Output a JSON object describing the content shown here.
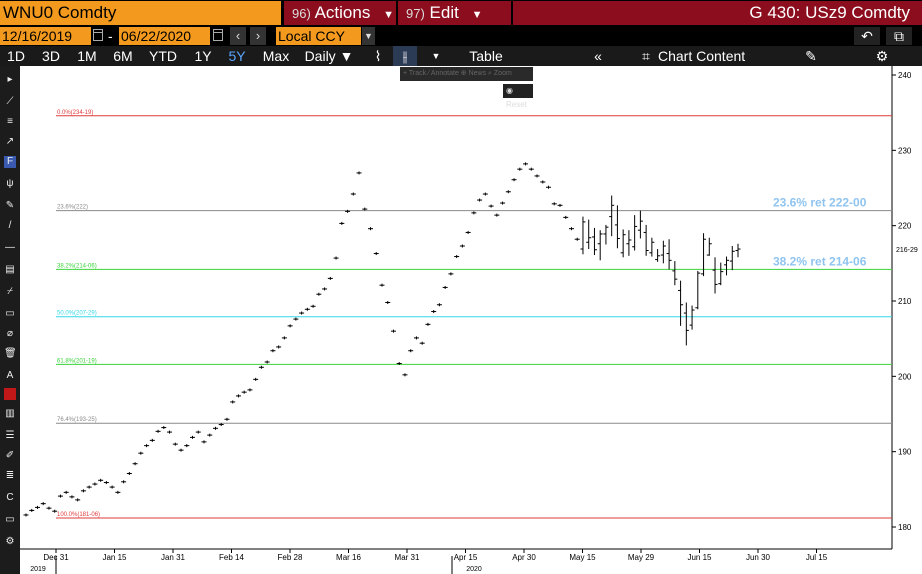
{
  "header": {
    "ticker": "WNU0 Comdty",
    "actions": {
      "num": "96)",
      "label": "Actions"
    },
    "edit": {
      "num": "97)",
      "label": "Edit"
    },
    "title": "G 430: USz9 Comdty"
  },
  "controls": {
    "start_date": "12/16/2019",
    "end_date": "06/22/2020",
    "dash": "-",
    "currency": "Local CCY",
    "prev_symbol": "‹",
    "next_symbol": "›",
    "undo_symbol": "↶",
    "copy_symbol": "⧉"
  },
  "toolbar": {
    "periods": [
      "1D",
      "3D",
      "1M",
      "6M",
      "YTD",
      "1Y",
      "5Y",
      "Max"
    ],
    "active_period": "5Y",
    "frequency": "Daily ▼",
    "table_label": "Table",
    "collapse_symbol": "«",
    "chart_content_label": "Chart Content",
    "edit_symbol": "✎",
    "settings_symbol": "⚙"
  },
  "float_tools": {
    "label": "+ Track  ⁄ Annotate  ⊕ News  ⌕ Zoom"
  },
  "reset_label": "Reset",
  "colors": {
    "red_line": "#e03a3a",
    "green_line": "#3ad33a",
    "cyan_line": "#36d7e8",
    "gray_line": "#8a8a8a",
    "label_blue": "#8fc4f0",
    "accent_orange": "#f39a1e",
    "bar_color": "#000000"
  },
  "chart_data": {
    "type": "bar",
    "subtype": "ohlc",
    "y_axis": {
      "ticks": [
        "240",
        "230",
        "220",
        "210",
        "200",
        "190",
        "180"
      ],
      "min": 179,
      "max": 240,
      "position": "right",
      "last_price_label": "216-29"
    },
    "x_axis": {
      "ticks": [
        "Dec 31",
        "Jan 15",
        "Jan 31",
        "Feb 14",
        "Feb 28",
        "Mar 16",
        "Mar 31",
        "Apr 15",
        "Apr 30",
        "May 15",
        "May 29",
        "Jun 15",
        "Jun 30",
        "Jul 15"
      ],
      "years": [
        {
          "label": "2019"
        },
        {
          "label": "2020"
        }
      ]
    },
    "fib_levels": [
      {
        "label": "0.0%(234-19)",
        "value": 234.59,
        "color": "red",
        "right_label": ""
      },
      {
        "label": "23.6%(222)",
        "value": 222.0,
        "color": "gray",
        "right_label": "23.6% ret 222-00"
      },
      {
        "label": "38.2%(214-06)",
        "value": 214.19,
        "color": "green",
        "right_label": "38.2% ret 214-06"
      },
      {
        "label": "50.0%(207-29)",
        "value": 207.91,
        "color": "cyan",
        "right_label": ""
      },
      {
        "label": "61.8%(201-19)",
        "value": 201.59,
        "color": "green",
        "right_label": ""
      },
      {
        "label": "76.4%(193-25)",
        "value": 193.78,
        "color": "gray",
        "right_label": ""
      },
      {
        "label": "100.0%(181-06)",
        "value": 181.19,
        "color": "red",
        "right_label": ""
      }
    ],
    "grid": false,
    "series_ohlc": [
      [
        181.6,
        181.8,
        181.4,
        181.6
      ],
      [
        182.2,
        182.4,
        182.0,
        182.2
      ],
      [
        182.6,
        182.8,
        182.4,
        182.6
      ],
      [
        183.1,
        183.3,
        182.9,
        183.1
      ],
      [
        182.5,
        182.7,
        182.3,
        182.5
      ],
      [
        182.1,
        182.3,
        181.9,
        182.1
      ],
      [
        184.1,
        184.3,
        183.9,
        184.1
      ],
      [
        184.6,
        184.8,
        184.4,
        184.6
      ],
      [
        184.0,
        184.2,
        183.8,
        184.0
      ],
      [
        183.6,
        183.8,
        183.4,
        183.6
      ],
      [
        184.8,
        185.0,
        184.6,
        184.8
      ],
      [
        185.3,
        185.5,
        185.1,
        185.3
      ],
      [
        185.7,
        185.9,
        185.5,
        185.7
      ],
      [
        186.2,
        186.4,
        186.0,
        186.2
      ],
      [
        185.9,
        186.1,
        185.7,
        185.9
      ],
      [
        185.3,
        185.5,
        185.1,
        185.3
      ],
      [
        184.6,
        184.8,
        184.4,
        184.6
      ],
      [
        186.0,
        186.2,
        185.8,
        186.0
      ],
      [
        187.1,
        187.3,
        186.9,
        187.1
      ],
      [
        188.4,
        188.6,
        188.2,
        188.4
      ],
      [
        189.8,
        190.0,
        189.6,
        189.8
      ],
      [
        190.8,
        191.0,
        190.6,
        190.8
      ],
      [
        191.5,
        191.7,
        191.3,
        191.5
      ],
      [
        192.7,
        192.9,
        192.5,
        192.7
      ],
      [
        193.2,
        193.4,
        193.0,
        193.2
      ],
      [
        192.6,
        192.8,
        192.4,
        192.6
      ],
      [
        191.0,
        191.2,
        190.8,
        191.0
      ],
      [
        190.2,
        190.4,
        190.0,
        190.2
      ],
      [
        190.8,
        191.0,
        190.6,
        190.8
      ],
      [
        191.9,
        192.1,
        191.7,
        191.9
      ],
      [
        192.6,
        192.8,
        192.4,
        192.6
      ],
      [
        191.3,
        191.5,
        191.1,
        191.3
      ],
      [
        192.2,
        192.4,
        192.0,
        192.2
      ],
      [
        193.1,
        193.3,
        192.9,
        193.1
      ],
      [
        193.6,
        193.8,
        193.4,
        193.6
      ],
      [
        194.3,
        194.5,
        194.1,
        194.3
      ],
      [
        196.6,
        196.8,
        196.4,
        196.6
      ],
      [
        197.4,
        197.6,
        197.2,
        197.4
      ],
      [
        197.9,
        198.1,
        197.7,
        197.9
      ],
      [
        198.2,
        198.4,
        198.0,
        198.2
      ],
      [
        199.6,
        199.8,
        199.4,
        199.6
      ],
      [
        201.2,
        201.4,
        201.0,
        201.2
      ],
      [
        201.9,
        202.1,
        201.7,
        201.9
      ],
      [
        203.4,
        203.6,
        203.2,
        203.4
      ],
      [
        203.9,
        204.1,
        203.7,
        203.9
      ],
      [
        205.1,
        205.3,
        204.9,
        205.1
      ],
      [
        206.7,
        206.9,
        206.5,
        206.7
      ],
      [
        207.6,
        207.8,
        207.4,
        207.6
      ],
      [
        208.4,
        208.6,
        208.2,
        208.4
      ],
      [
        208.9,
        209.1,
        208.7,
        208.9
      ],
      [
        209.3,
        209.5,
        209.1,
        209.3
      ],
      [
        210.9,
        211.1,
        210.7,
        210.9
      ],
      [
        211.6,
        211.8,
        211.4,
        211.6
      ],
      [
        213.0,
        213.2,
        212.8,
        213.0
      ],
      [
        215.7,
        215.9,
        215.5,
        215.7
      ],
      [
        220.3,
        220.5,
        220.1,
        220.3
      ],
      [
        221.9,
        222.1,
        221.7,
        221.9
      ],
      [
        224.2,
        224.4,
        224.0,
        224.2
      ],
      [
        227.0,
        227.2,
        226.8,
        227.0
      ],
      [
        222.2,
        222.4,
        222.0,
        222.2
      ],
      [
        219.6,
        219.8,
        219.4,
        219.6
      ],
      [
        216.3,
        216.5,
        216.1,
        216.3
      ],
      [
        212.1,
        212.3,
        211.9,
        212.1
      ],
      [
        209.8,
        210.0,
        209.6,
        209.8
      ],
      [
        206.0,
        206.2,
        205.8,
        206.0
      ],
      [
        201.7,
        201.9,
        201.5,
        201.7
      ],
      [
        200.2,
        200.4,
        200.0,
        200.2
      ],
      [
        203.4,
        203.6,
        203.2,
        203.4
      ],
      [
        205.1,
        205.3,
        204.9,
        205.1
      ],
      [
        204.4,
        204.6,
        204.2,
        204.4
      ],
      [
        206.9,
        207.1,
        206.7,
        206.9
      ],
      [
        208.6,
        208.8,
        208.4,
        208.6
      ],
      [
        209.5,
        209.7,
        209.3,
        209.5
      ],
      [
        211.8,
        212.0,
        211.6,
        211.8
      ],
      [
        213.6,
        213.8,
        213.4,
        213.6
      ],
      [
        215.9,
        216.1,
        215.7,
        215.9
      ],
      [
        217.3,
        217.5,
        217.1,
        217.3
      ],
      [
        219.1,
        219.3,
        218.9,
        219.1
      ],
      [
        221.7,
        221.9,
        221.5,
        221.7
      ],
      [
        223.4,
        223.6,
        223.2,
        223.4
      ],
      [
        224.2,
        224.4,
        224.0,
        224.2
      ],
      [
        222.6,
        222.8,
        222.4,
        222.6
      ],
      [
        221.4,
        221.6,
        221.2,
        221.4
      ],
      [
        223.0,
        223.2,
        222.8,
        223.0
      ],
      [
        224.5,
        224.7,
        224.3,
        224.5
      ],
      [
        226.1,
        226.3,
        225.9,
        226.1
      ],
      [
        227.5,
        227.7,
        227.3,
        227.5
      ],
      [
        228.2,
        228.4,
        228.0,
        228.2
      ],
      [
        227.5,
        227.7,
        227.3,
        227.5
      ],
      [
        226.6,
        226.8,
        226.4,
        226.6
      ],
      [
        225.8,
        226.0,
        225.6,
        225.8
      ],
      [
        225.1,
        225.3,
        224.9,
        225.1
      ],
      [
        222.9,
        223.1,
        222.7,
        222.9
      ],
      [
        222.7,
        222.9,
        222.5,
        222.7
      ],
      [
        221.1,
        221.3,
        220.9,
        221.1
      ],
      [
        219.6,
        219.8,
        219.4,
        219.6
      ],
      [
        218.2,
        218.4,
        218.0,
        218.2
      ],
      [
        216.9,
        221.2,
        216.2,
        220.5
      ],
      [
        217.8,
        220.8,
        216.9,
        218.4
      ],
      [
        218.5,
        219.7,
        216.1,
        216.8
      ],
      [
        217.6,
        219.4,
        215.4,
        218.9
      ],
      [
        218.9,
        220.1,
        217.5,
        219.8
      ],
      [
        221.2,
        224.0,
        218.6,
        222.7
      ],
      [
        220.1,
        222.7,
        217.0,
        218.3
      ],
      [
        216.4,
        219.5,
        215.8,
        218.8
      ],
      [
        217.6,
        219.4,
        216.0,
        218.1
      ],
      [
        217.2,
        221.4,
        216.7,
        219.9
      ],
      [
        219.4,
        222.0,
        218.3,
        220.6
      ],
      [
        219.1,
        220.1,
        216.0,
        216.7
      ],
      [
        216.4,
        218.4,
        215.9,
        217.8
      ],
      [
        215.5,
        216.9,
        215.2,
        216.0
      ],
      [
        216.1,
        218.0,
        215.0,
        217.3
      ],
      [
        216.3,
        218.2,
        214.2,
        215.4
      ],
      [
        214.0,
        215.3,
        212.1,
        212.9
      ],
      [
        211.4,
        212.7,
        206.7,
        209.5
      ],
      [
        208.4,
        209.8,
        204.1,
        206.1
      ],
      [
        206.8,
        209.4,
        206.2,
        208.8
      ],
      [
        209.1,
        214.0,
        208.9,
        213.7
      ],
      [
        213.6,
        219.0,
        213.3,
        218.2
      ],
      [
        216.1,
        218.4,
        216.0,
        217.6
      ],
      [
        214.1,
        215.8,
        211.0,
        212.2
      ],
      [
        212.3,
        215.1,
        212.1,
        213.9
      ],
      [
        214.8,
        215.9,
        213.4,
        215.4
      ],
      [
        215.3,
        217.3,
        214.1,
        216.6
      ],
      [
        216.7,
        217.6,
        215.8,
        216.9
      ]
    ]
  }
}
